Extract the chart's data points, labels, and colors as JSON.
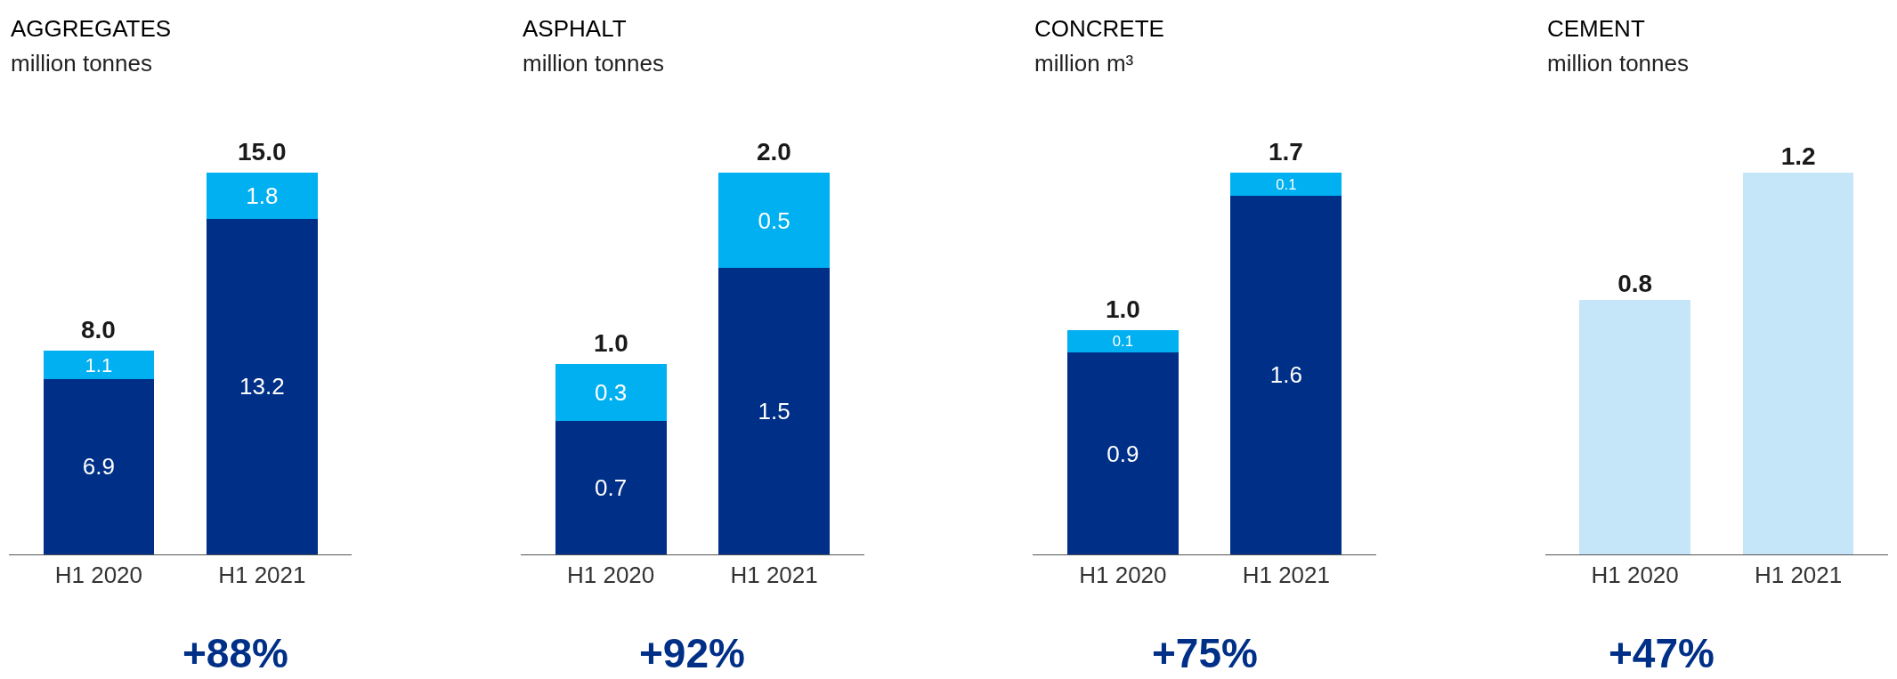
{
  "chart_data": [
    {
      "type": "bar",
      "title": "AGGREGATES",
      "subtitle": "million tonnes",
      "categories": [
        "H1 2020",
        "H1 2021"
      ],
      "stacked": true,
      "data_labels": true,
      "totals": [
        "8.0",
        "15.0"
      ],
      "annotations": [
        "+88%"
      ],
      "series": [
        {
          "color": "#002f87",
          "values": [
            6.9,
            13.2
          ]
        },
        {
          "color": "#00b0f0",
          "values": [
            1.1,
            1.8
          ]
        }
      ]
    },
    {
      "type": "bar",
      "title": "ASPHALT",
      "subtitle": "million tonnes",
      "categories": [
        "H1 2020",
        "H1 2021"
      ],
      "stacked": true,
      "data_labels": true,
      "totals": [
        "1.0",
        "2.0"
      ],
      "annotations": [
        "+92%"
      ],
      "series": [
        {
          "color": "#002f87",
          "values": [
            0.7,
            1.5
          ]
        },
        {
          "color": "#00b0f0",
          "values": [
            0.3,
            0.5
          ]
        }
      ]
    },
    {
      "type": "bar",
      "title": "CONCRETE",
      "subtitle": "million m³",
      "categories": [
        "H1 2020",
        "H1 2021"
      ],
      "stacked": true,
      "data_labels": true,
      "totals": [
        "1.0",
        "1.7"
      ],
      "annotations": [
        "+75%"
      ],
      "series": [
        {
          "color": "#002f87",
          "values": [
            0.9,
            1.6
          ]
        },
        {
          "color": "#00b0f0",
          "values": [
            0.1,
            0.1
          ]
        }
      ]
    },
    {
      "type": "bar",
      "title": "CEMENT",
      "subtitle": "million tonnes",
      "categories": [
        "H1 2020",
        "H1 2021"
      ],
      "annotations": [
        "+47%"
      ],
      "series": [
        {
          "color": "#c5e6f8",
          "values": [
            0.8,
            1.2
          ],
          "value_labels": [
            "0.8",
            "1.2"
          ]
        }
      ]
    }
  ]
}
